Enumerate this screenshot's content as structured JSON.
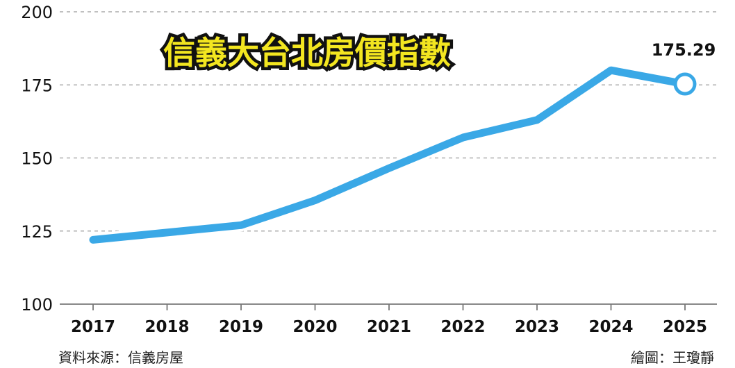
{
  "chart_data": {
    "type": "line",
    "title": "信義大台北房價指數",
    "categories": [
      "2017",
      "2018",
      "2019",
      "2020",
      "2021",
      "2022",
      "2023",
      "2024",
      "2025"
    ],
    "values": [
      122,
      124.5,
      127,
      135.5,
      146.5,
      157,
      163,
      180,
      175.29
    ],
    "yticks": [
      100,
      125,
      150,
      175,
      200
    ],
    "ylim": [
      100,
      200
    ],
    "annotation": {
      "text": "175.29",
      "category": "2025",
      "value": 175.29
    },
    "grid": true,
    "line_color": "#3aa8e6",
    "title_fill": "#f3e620"
  },
  "footer": {
    "source": "資料來源：信義房屋",
    "credit": "繪圖：王瓊靜"
  }
}
